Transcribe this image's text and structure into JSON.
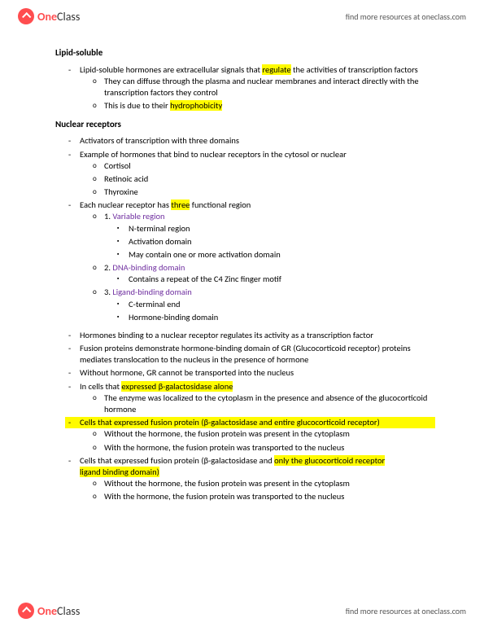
{
  "brand": {
    "part1": "One",
    "part2": "Class"
  },
  "header_link": "find more resources at oneclass.com",
  "footer_link": "find more resources at oneclass.com",
  "sec1": {
    "title": "Lipid-soluble",
    "b1": "Lipid-soluble hormones are extracellular signals that ",
    "b1_hl": "regulate",
    "b1_end": " the activities of transcription factors",
    "b1a": "They can diffuse through the plasma and nuclear membranes and interact directly with the transcription factors they control",
    "b1b_pre": "This is due to their ",
    "b1b_hl": "hydrophobicity"
  },
  "sec2": {
    "title": "Nuclear receptors",
    "r1": "Activators of transcription with three domains",
    "r2": "Example of hormones that bind to nuclear receptors in the cytosol or nuclear",
    "r2a": "Cortisol",
    "r2b": "Retinoic acid",
    "r2c": "Thyroxine",
    "r3_pre": "Each nuclear receptor has ",
    "r3_hl": "three",
    "r3_end": " functional region",
    "r3a_num": "1. ",
    "r3a_txt": "Variable region",
    "r3a1": "N-terminal region",
    "r3a2": "Activation domain",
    "r3a3": "May contain one or more activation domain",
    "r3b_num": "2. ",
    "r3b_txt": "DNA-binding domain",
    "r3b1": "Contains a repeat of the C4 Zinc finger motif",
    "r3c_num": "3. ",
    "r3c_txt": "Ligand-binding domain",
    "r3c1": "C-terminal end",
    "r3c2": "Hormone-binding domain",
    "p1": "Hormones binding to a nuclear receptor regulates its activity as a transcription factor",
    "p2": "Fusion proteins demonstrate hormone-binding domain of GR (Glucocorticoid receptor) proteins mediates translocation to the nucleus in the presence of hormone",
    "p3": "Without hormone, GR cannot be transported into the nucleus",
    "p4_pre": "In cells that ",
    "p4_hl": "expressed β-galactosidase alone",
    "p4a": "The enzyme was localized to the cytoplasm in the presence and absence of the glucocorticoid hormone",
    "p5_hl": "Cells that expressed fusion protein (β-galactosidase and entire glucocorticoid receptor)",
    "p5a": "Without the hormone, the fusion protein was present in the cytoplasm",
    "p5b": "With the hormone, the fusion protein was transported to the nucleus",
    "p6_pre": "Cells that expressed fusion protein (β-galactosidase and ",
    "p6_hl1": "only the glucocorticoid receptor",
    "p6_hl2": "ligand binding domain)",
    "p6a": "Without the hormone, the fusion protein was present in the cytoplasm",
    "p6b": "With the hormone, the fusion protein was transported to the nucleus"
  }
}
